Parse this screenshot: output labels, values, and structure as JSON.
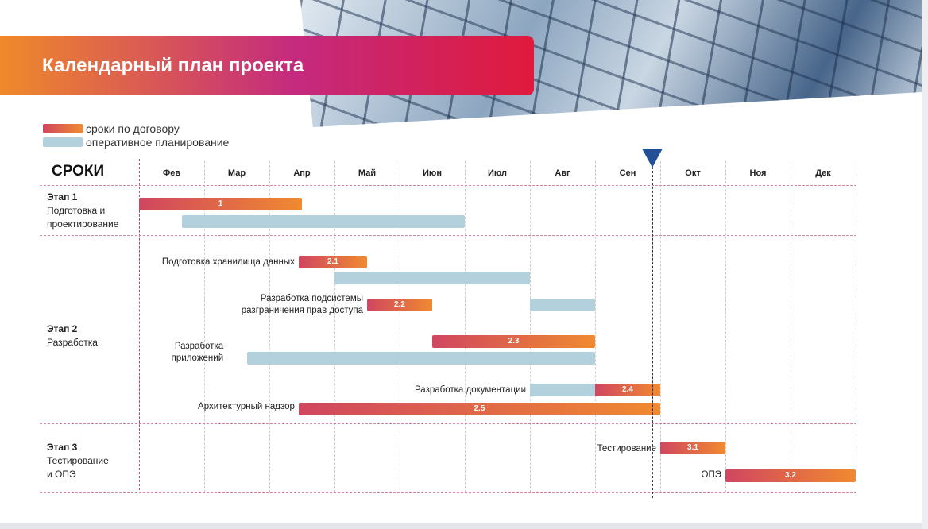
{
  "title": "Календарный план проекта",
  "colors": {
    "contract_start": "#d04660",
    "contract_end": "#f08a30",
    "operational": "#b3d0dd",
    "today": "#234f96"
  },
  "chart_data": {
    "type": "gantt",
    "title": "Календарный план проекта",
    "xlabel": "СРОКИ",
    "x_categories": [
      "Фев",
      "Мар",
      "Апр",
      "Май",
      "Июн",
      "Июл",
      "Авг",
      "Сен",
      "Окт",
      "Ноя",
      "Дек"
    ],
    "x_range_months": [
      0,
      11
    ],
    "legend": [
      {
        "name": "сроки по договору",
        "kind": "contract"
      },
      {
        "name": "оперативное планирование",
        "kind": "operational"
      }
    ],
    "legend_placement": "top-left",
    "today_marker_month": 7.88,
    "stages": [
      {
        "title": "Этап 1",
        "subtitle": [
          "Подготовка и",
          "проектирование"
        ]
      },
      {
        "title": "Этап 2",
        "subtitle": [
          "Разработка"
        ]
      },
      {
        "title": "Этап 3",
        "subtitle": [
          "Тестирование",
          "и  ОПЭ"
        ]
      }
    ],
    "tasks": [
      {
        "id": "1",
        "label": [],
        "contract": [
          0,
          2.5
        ],
        "operational": [
          0.66,
          5.0
        ]
      },
      {
        "id": "2.1",
        "label": [
          "Подготовка хранилища данных"
        ],
        "contract": [
          2.45,
          3.5
        ],
        "operational": [
          3.0,
          6.0
        ]
      },
      {
        "id": "2.2",
        "label": [
          "Разработка подсистемы",
          "разграничения  прав доступа"
        ],
        "contract": [
          3.5,
          4.5
        ],
        "operational": [
          6.0,
          7.0
        ]
      },
      {
        "id": "2.3",
        "label": [
          "Разработка",
          "приложений"
        ],
        "contract": [
          4.5,
          7.0
        ],
        "operational": [
          1.66,
          7.0
        ]
      },
      {
        "id": "2.4",
        "label": [
          "Разработка документации"
        ],
        "contract": [
          7.0,
          8.0
        ],
        "operational": [
          6.0,
          7.0
        ]
      },
      {
        "id": "2.5",
        "label": [
          "Архитектурный надзор"
        ],
        "contract": [
          2.45,
          8.0
        ],
        "operational": null
      },
      {
        "id": "3.1",
        "label": [
          "Тестирование"
        ],
        "contract": [
          8.0,
          9.0
        ],
        "operational": null
      },
      {
        "id": "3.2",
        "label": [
          "ОПЭ"
        ],
        "contract": [
          9.0,
          11.0
        ],
        "operational": null
      }
    ]
  }
}
